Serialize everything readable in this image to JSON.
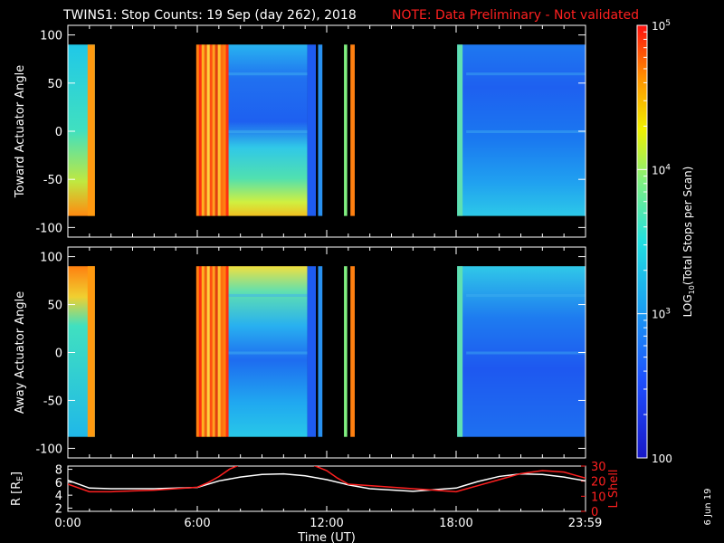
{
  "header": {
    "title": "TWINS1: Stop Counts: 19 Sep (day 262), 2018",
    "note": "NOTE: Data Preliminary - Not validated"
  },
  "footer": {
    "date_stamp": "6 Jun 19"
  },
  "colors": {
    "background": "#000000",
    "axes": "#ffffff",
    "note_text": "#ff2020",
    "r_line": "#ffffff",
    "l_shell_line": "#ff2020"
  },
  "chart_data": [
    {
      "type": "heatmap",
      "panel": "toward",
      "ylabel": "Toward Actuator Angle",
      "ylim": [
        -110,
        110
      ],
      "yticks": [
        100,
        50,
        0,
        -50,
        -100
      ],
      "xlim": [
        0,
        24
      ],
      "angle_range": [
        -88,
        90
      ],
      "data_intervals_hours": [
        [
          0.0,
          1.25
        ],
        [
          5.95,
          7.45
        ],
        [
          7.45,
          11.1
        ],
        [
          11.1,
          11.5
        ],
        [
          11.6,
          11.8
        ],
        [
          12.8,
          12.95
        ],
        [
          13.1,
          13.3
        ],
        [
          18.05,
          24.0
        ]
      ],
      "color_scale": "log10",
      "note": "Counts rendered as log10 color map; estimated visual levels"
    },
    {
      "type": "heatmap",
      "panel": "away",
      "ylabel": "Away Actuator Angle",
      "xlabel": "",
      "ylim": [
        -110,
        110
      ],
      "yticks": [
        100,
        50,
        0,
        -50,
        -100
      ],
      "xlim": [
        0,
        24
      ],
      "angle_range": [
        -88,
        90
      ],
      "data_intervals_hours": [
        [
          0.0,
          1.25
        ],
        [
          5.95,
          7.45
        ],
        [
          7.45,
          11.1
        ],
        [
          11.1,
          11.5
        ],
        [
          11.6,
          11.8
        ],
        [
          12.8,
          12.95
        ],
        [
          13.1,
          13.3
        ],
        [
          18.05,
          24.0
        ]
      ],
      "color_scale": "log10"
    },
    {
      "type": "line",
      "panel": "ephemeris",
      "ylabel_left": "R [R",
      "ylabel_left_sub": "E",
      "ylabel_left_end": "]",
      "ylabel_right": "L Shell",
      "ylim_left": [
        1.5,
        8.5
      ],
      "ylim_right": [
        0,
        30
      ],
      "yticks_left": [
        8,
        6,
        4,
        2
      ],
      "yticks_right": [
        30,
        20,
        10,
        0
      ],
      "xlabel": "Time (UT)",
      "xticks": [
        "0:00",
        "6:00",
        "12:00",
        "18:00",
        "23:59"
      ],
      "xtick_hours": [
        0,
        6,
        12,
        18,
        23.98
      ],
      "series": [
        {
          "key": "R",
          "x": [
            0,
            1,
            2,
            4,
            6,
            7,
            8,
            9,
            10,
            11,
            12,
            13,
            14,
            16,
            18,
            19,
            20,
            21,
            22,
            23,
            24
          ],
          "values": [
            6.3,
            5.1,
            5.0,
            5.0,
            5.2,
            6.2,
            6.8,
            7.2,
            7.3,
            7.0,
            6.4,
            5.6,
            5.0,
            4.6,
            5.1,
            6.1,
            6.9,
            7.3,
            7.2,
            6.8,
            6.2
          ]
        },
        {
          "key": "L",
          "x": [
            0,
            1,
            2,
            4,
            6,
            6.5,
            7,
            7.5,
            8,
            11.3,
            12,
            12.5,
            13,
            14,
            16,
            17,
            18,
            19,
            20,
            21,
            22,
            23,
            24
          ],
          "values": [
            18,
            13,
            13,
            14,
            16,
            19,
            23,
            28,
            31,
            31,
            27,
            22,
            18,
            17,
            15,
            14,
            13,
            17,
            21,
            25,
            27,
            26,
            22
          ]
        }
      ]
    },
    {
      "type": "heatmap",
      "panel": "colorbar",
      "ylabel_main": "LOG",
      "ylabel_sub": "10",
      "ylabel_rest": "(Total Stops per Scan)",
      "range": [
        100,
        100000
      ],
      "tick_labels": [
        {
          "value": 100000,
          "base": "10",
          "exp": "5"
        },
        {
          "value": 10000,
          "base": "10",
          "exp": "4"
        },
        {
          "value": 1000,
          "base": "10",
          "exp": "3"
        },
        {
          "value": 100,
          "base": "100",
          "exp": ""
        }
      ]
    }
  ]
}
